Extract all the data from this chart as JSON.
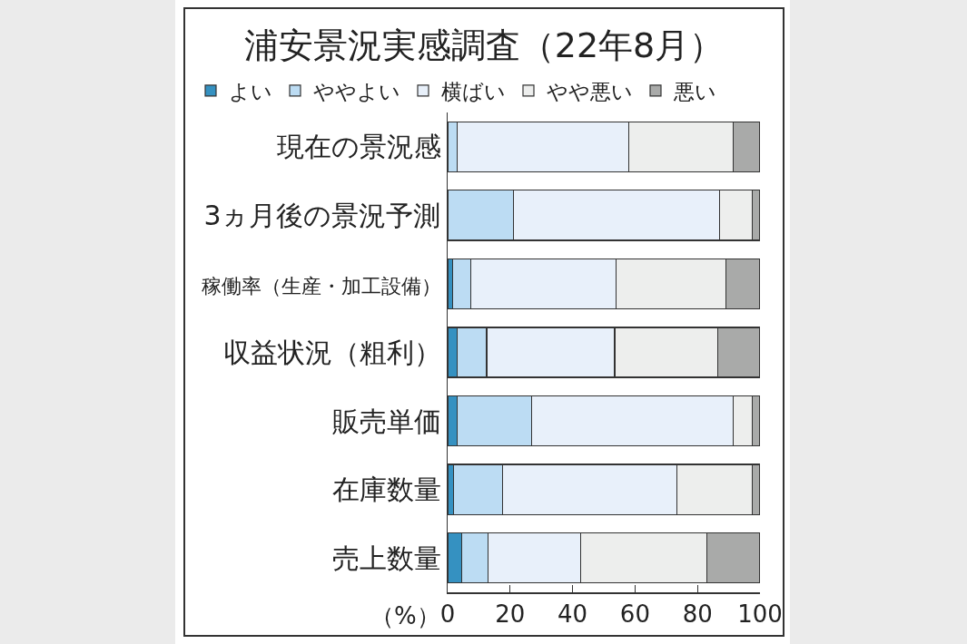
{
  "chart_data": {
    "type": "bar",
    "title": "浦安景況実感調査（22年8月）",
    "xlabel": "（%）",
    "categories": [
      "現在の景況感",
      "3ヵ月後の景況予測",
      "稼働率（生産・加工設備）",
      "収益状況（粗利）",
      "販売単価",
      "在庫数量",
      "売上数量"
    ],
    "orientation": "horizontal",
    "stacked": true,
    "xlim": [
      0,
      100
    ],
    "xticks": [
      0,
      20,
      40,
      60,
      80,
      100
    ],
    "legend": "top",
    "series": [
      {
        "name": "よい",
        "color": "#3591c1",
        "values": [
          0,
          0,
          1.5,
          3,
          3,
          2,
          4.5
        ]
      },
      {
        "name": "ややよい",
        "color": "#bcdcf3",
        "values": [
          3,
          21,
          6,
          9.5,
          24,
          15.5,
          8.5
        ]
      },
      {
        "name": "横ばい",
        "color": "#e8f0fa",
        "values": [
          55,
          66,
          46.5,
          41,
          64.5,
          56,
          29.5
        ]
      },
      {
        "name": "やや悪い",
        "color": "#edeeed",
        "values": [
          33.5,
          10.5,
          35,
          33,
          6,
          24,
          40.5
        ]
      },
      {
        "name": "悪い",
        "color": "#a9aaa9",
        "values": [
          8.5,
          2.5,
          11,
          13.5,
          2.5,
          2.5,
          17
        ]
      }
    ]
  }
}
